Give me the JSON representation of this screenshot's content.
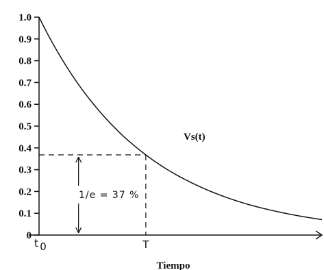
{
  "chart_data": {
    "type": "line",
    "xlabel": "Tiempo",
    "ylabel": "",
    "ylim": [
      0,
      1.0
    ],
    "xlim": [
      0,
      2.65
    ],
    "grid": false,
    "yticks": [
      "0",
      "0.1",
      "0.2",
      "0.3",
      "0.4",
      "0.5",
      "0.6",
      "0.7",
      "0.8",
      "0.9",
      "1.0"
    ],
    "xtick_labels": {
      "origin": "t",
      "origin_sub": "0",
      "tau": "T"
    },
    "xticks": [
      0,
      1
    ],
    "series": [
      {
        "name": "Vs(t)",
        "x": [
          0,
          0.1,
          0.2,
          0.3,
          0.4,
          0.5,
          0.6,
          0.7,
          0.8,
          0.9,
          1.0,
          1.2,
          1.4,
          1.6,
          1.8,
          2.0,
          2.2,
          2.4,
          2.65
        ],
        "y": [
          1.0,
          0.905,
          0.819,
          0.741,
          0.67,
          0.607,
          0.549,
          0.497,
          0.449,
          0.407,
          0.368,
          0.301,
          0.247,
          0.202,
          0.165,
          0.135,
          0.111,
          0.091,
          0.071
        ]
      }
    ],
    "annotations": [
      {
        "text": "1/e = 37 %",
        "x": 1.0,
        "y": 0.368
      }
    ]
  }
}
